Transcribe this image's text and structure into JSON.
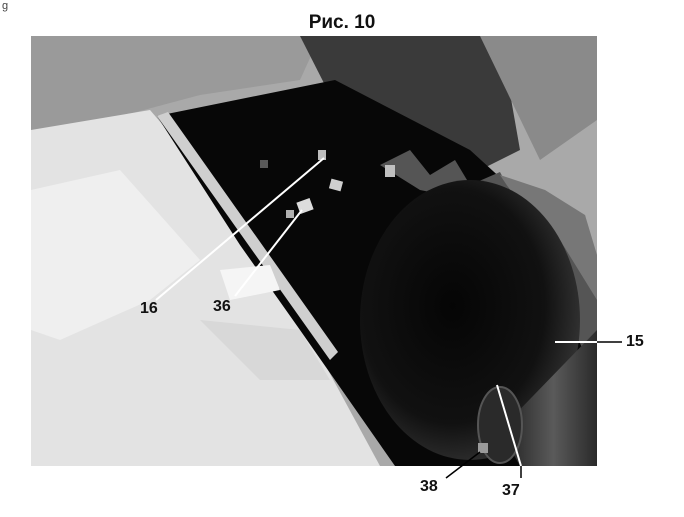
{
  "page_mark": "g",
  "figure": {
    "title": "Рис. 10",
    "callouts": {
      "c16": "16",
      "c36": "36",
      "c15": "15",
      "c38": "38",
      "c37": "37"
    }
  }
}
